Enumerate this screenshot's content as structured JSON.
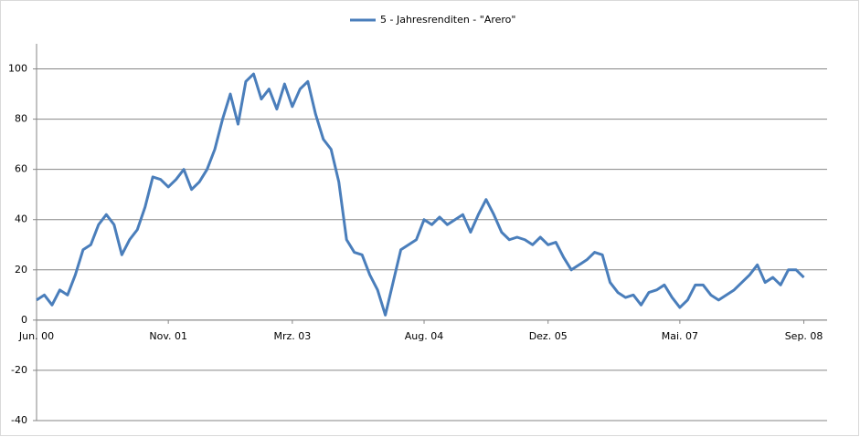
{
  "chart_data": {
    "type": "line",
    "x": [
      "2000-06",
      "2000-07",
      "2000-08",
      "2000-09",
      "2000-10",
      "2000-11",
      "2000-12",
      "2001-01",
      "2001-02",
      "2001-03",
      "2001-04",
      "2001-05",
      "2001-06",
      "2001-07",
      "2001-08",
      "2001-09",
      "2001-10",
      "2001-11",
      "2001-12",
      "2002-01",
      "2002-02",
      "2002-03",
      "2002-04",
      "2002-05",
      "2002-06",
      "2002-07",
      "2002-08",
      "2002-09",
      "2002-10",
      "2002-11",
      "2002-12",
      "2003-01",
      "2003-02",
      "2003-03",
      "2003-04",
      "2003-05",
      "2003-06",
      "2003-07",
      "2003-08",
      "2003-09",
      "2003-10",
      "2003-11",
      "2003-12",
      "2004-01",
      "2004-02",
      "2004-03",
      "2004-04",
      "2004-05",
      "2004-06",
      "2004-07",
      "2004-08",
      "2004-09",
      "2004-10",
      "2004-11",
      "2004-12",
      "2005-01",
      "2005-02",
      "2005-03",
      "2005-04",
      "2005-05",
      "2005-06",
      "2005-07",
      "2005-08",
      "2005-09",
      "2005-10",
      "2005-11",
      "2005-12",
      "2006-01",
      "2006-02",
      "2006-03",
      "2006-04",
      "2006-05",
      "2006-06",
      "2006-07",
      "2006-08",
      "2006-09",
      "2006-10",
      "2006-11",
      "2006-12",
      "2007-01",
      "2007-02",
      "2007-03",
      "2007-04",
      "2007-05",
      "2007-06",
      "2007-07",
      "2007-08",
      "2007-09",
      "2007-10",
      "2007-11",
      "2007-12",
      "2008-01",
      "2008-02",
      "2008-03",
      "2008-04",
      "2008-05",
      "2008-06",
      "2008-07",
      "2008-08",
      "2008-09"
    ],
    "series": [
      {
        "name": "5 - Jahresrenditen - \"Arero\"",
        "color": "#4a7ebb",
        "values": [
          8,
          10,
          6,
          12,
          10,
          18,
          28,
          30,
          38,
          42,
          38,
          26,
          32,
          36,
          45,
          57,
          56,
          53,
          56,
          60,
          52,
          55,
          60,
          68,
          80,
          90,
          78,
          95,
          98,
          88,
          92,
          84,
          94,
          85,
          92,
          95,
          82,
          72,
          68,
          55,
          32,
          27,
          26,
          18,
          12,
          2,
          15,
          28,
          30,
          32,
          40,
          38,
          41,
          38,
          40,
          42,
          35,
          42,
          48,
          42,
          35,
          32,
          33,
          32,
          30,
          33,
          30,
          31,
          25,
          20,
          22,
          24,
          27,
          26,
          15,
          11,
          9,
          10,
          6,
          11,
          12,
          14,
          9,
          5,
          8,
          14,
          14,
          10,
          8,
          10,
          12,
          15,
          18,
          22,
          15,
          17,
          14,
          20,
          20,
          17
        ]
      }
    ],
    "xlim": [
      "2000-06",
      "2008-12"
    ],
    "xticks": [
      {
        "value": "2000-06",
        "label": "Jun. 00"
      },
      {
        "value": "2001-11",
        "label": "Nov. 01"
      },
      {
        "value": "2003-03",
        "label": "Mrz. 03"
      },
      {
        "value": "2004-08",
        "label": "Aug. 04"
      },
      {
        "value": "2005-12",
        "label": "Dez. 05"
      },
      {
        "value": "2007-05",
        "label": "Mai. 07"
      },
      {
        "value": "2008-09",
        "label": "Sep. 08"
      }
    ],
    "ylim": [
      -40,
      110
    ],
    "yticks": [
      -40,
      -20,
      0,
      20,
      40,
      60,
      80,
      100
    ],
    "grid": true,
    "legend": "top"
  }
}
